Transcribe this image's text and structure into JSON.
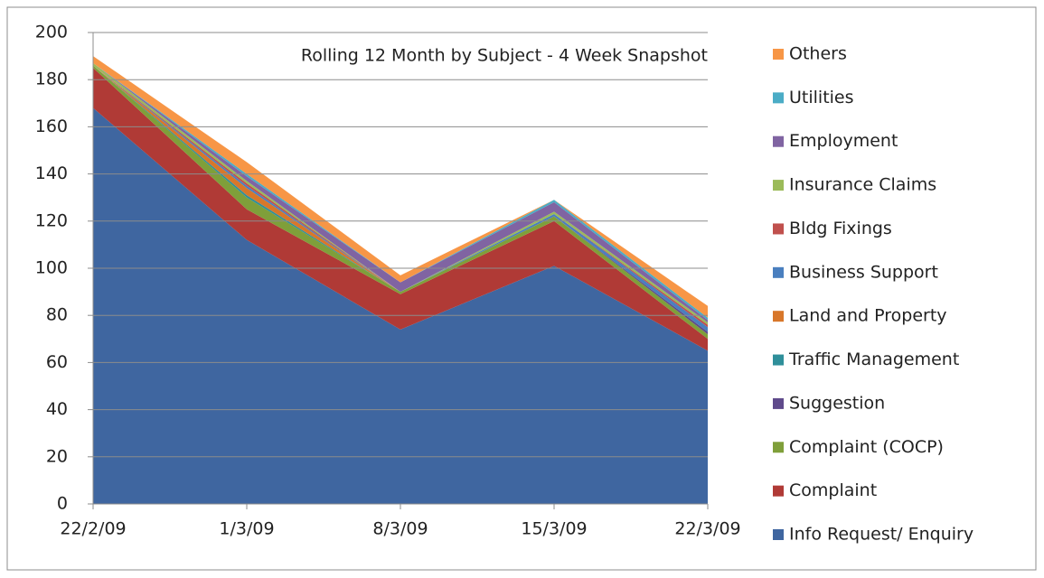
{
  "chart_data": {
    "type": "area",
    "stacked": true,
    "title": "Rolling 12 Month by Subject - 4 Week Snapshot",
    "categories": [
      "22/2/09",
      "1/3/09",
      "8/3/09",
      "15/3/09",
      "22/3/09"
    ],
    "series": [
      {
        "name": "Info Request/ Enquiry",
        "color": "#3f66a0",
        "values": [
          168,
          112,
          74,
          101,
          65
        ]
      },
      {
        "name": "Complaint",
        "color": "#b03a36",
        "values": [
          17,
          13,
          15,
          19,
          5
        ]
      },
      {
        "name": "Complaint (COCP)",
        "color": "#7f9f3a",
        "values": [
          1,
          5,
          1,
          2,
          2
        ]
      },
      {
        "name": "Suggestion",
        "color": "#5f4a8b",
        "values": [
          0,
          0,
          0,
          0,
          1
        ]
      },
      {
        "name": "Traffic Management",
        "color": "#2f8f9a",
        "values": [
          0,
          1,
          0,
          0,
          0
        ]
      },
      {
        "name": "Land and Property",
        "color": "#d8772a",
        "values": [
          0,
          3,
          0,
          0,
          0
        ]
      },
      {
        "name": "Business Support",
        "color": "#4a7fbf",
        "values": [
          0,
          1,
          0,
          1,
          2
        ]
      },
      {
        "name": "Bldg Fixings",
        "color": "#c0504d",
        "values": [
          0,
          1,
          0,
          0,
          1
        ]
      },
      {
        "name": "Insurance Claims",
        "color": "#9bbb59",
        "values": [
          1,
          1,
          0,
          1,
          1
        ]
      },
      {
        "name": "Employment",
        "color": "#8064a2",
        "values": [
          0,
          2,
          4,
          4,
          1
        ]
      },
      {
        "name": "Utilities",
        "color": "#4bacc6",
        "values": [
          0,
          1,
          0,
          1,
          1
        ]
      },
      {
        "name": "Others",
        "color": "#f79646",
        "values": [
          3,
          5,
          3,
          0,
          5
        ]
      }
    ],
    "ylim": [
      0,
      200
    ],
    "yticks": [
      0,
      20,
      40,
      60,
      80,
      100,
      120,
      140,
      160,
      180,
      200
    ],
    "grid": true,
    "legend": "right"
  }
}
